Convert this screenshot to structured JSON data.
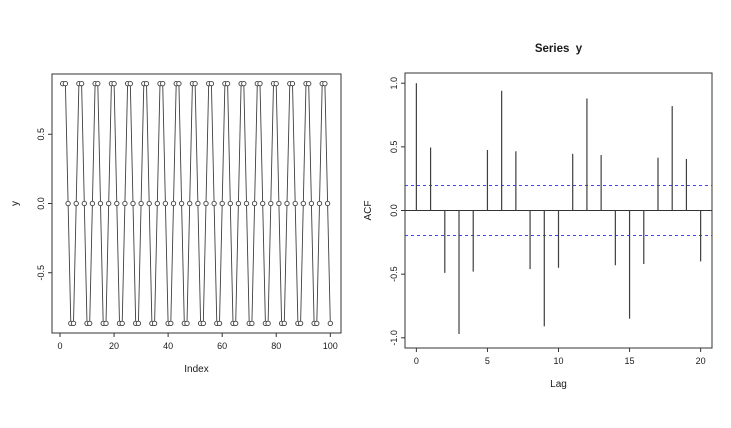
{
  "figure": {
    "background": "#ffffff",
    "line_color": "#3f3f3f",
    "axis_color": "#333333",
    "text_color": "#1a1a1a",
    "conf_line_color": "#4444ff",
    "marker_fill": "#ffffff"
  },
  "chart_data": [
    {
      "type": "line",
      "id": "series-plot",
      "title": "",
      "xlabel": "Index",
      "ylabel": "y",
      "x_ticks": [
        0,
        20,
        40,
        60,
        80,
        100
      ],
      "x_tick_labels": [
        "0",
        "20",
        "40",
        "60",
        "80",
        "100"
      ],
      "y_ticks": [
        -0.5,
        0.0,
        0.5
      ],
      "y_tick_labels": [
        "-0.5",
        "0.0",
        "0.5"
      ],
      "xlim": [
        -2.96,
        103.96
      ],
      "ylim": [
        -0.9353,
        0.9353
      ],
      "grid": false,
      "marker": "open-circle",
      "x_start": 1,
      "y": [
        0.866,
        0.866,
        0,
        -0.866,
        -0.866,
        0,
        0.866,
        0.866,
        0,
        -0.866,
        -0.866,
        0,
        0.866,
        0.866,
        0,
        -0.866,
        -0.866,
        0,
        0.866,
        0.866,
        0,
        -0.866,
        -0.866,
        0,
        0.866,
        0.866,
        0,
        -0.866,
        -0.866,
        0,
        0.866,
        0.866,
        0,
        -0.866,
        -0.866,
        0,
        0.866,
        0.866,
        0,
        -0.866,
        -0.866,
        0,
        0.866,
        0.866,
        0,
        -0.866,
        -0.866,
        0,
        0.866,
        0.866,
        0,
        -0.866,
        -0.866,
        0,
        0.866,
        0.866,
        0,
        -0.866,
        -0.866,
        0,
        0.866,
        0.866,
        0,
        -0.866,
        -0.866,
        0,
        0.866,
        0.866,
        0,
        -0.866,
        -0.866,
        0,
        0.866,
        0.866,
        0,
        -0.866,
        -0.866,
        0,
        0.866,
        0.866,
        0,
        -0.866,
        -0.866,
        0,
        0.866,
        0.866,
        0,
        -0.866,
        -0.866,
        0,
        0.866,
        0.866,
        0,
        -0.866,
        -0.866,
        0,
        0.866,
        0.866,
        0,
        -0.866
      ]
    },
    {
      "type": "bar",
      "id": "acf-plot",
      "title": "Series  y",
      "xlabel": "Lag",
      "ylabel": "ACF",
      "x_ticks": [
        0,
        5,
        10,
        15,
        20
      ],
      "x_tick_labels": [
        "0",
        "5",
        "10",
        "15",
        "20"
      ],
      "y_ticks": [
        -1.0,
        -0.5,
        0.0,
        0.5,
        1.0
      ],
      "y_tick_labels": [
        "-1.0",
        "-0.5",
        "0.0",
        "0.5",
        "1.0"
      ],
      "xlim": [
        -0.8,
        20.8
      ],
      "ylim": [
        -1.08,
        1.08
      ],
      "grid": false,
      "conf_level": 0.196,
      "conf_style": "dashed-blue",
      "lags": [
        0,
        1,
        2,
        3,
        4,
        5,
        6,
        7,
        8,
        9,
        10,
        11,
        12,
        13,
        14,
        15,
        16,
        17,
        18,
        19,
        20
      ],
      "acf": [
        1.0,
        0.495,
        -0.49,
        -0.97,
        -0.48,
        0.475,
        0.94,
        0.465,
        -0.46,
        -0.91,
        -0.45,
        0.445,
        0.88,
        0.435,
        -0.43,
        -0.85,
        -0.42,
        0.415,
        0.82,
        0.405,
        -0.4
      ]
    }
  ]
}
